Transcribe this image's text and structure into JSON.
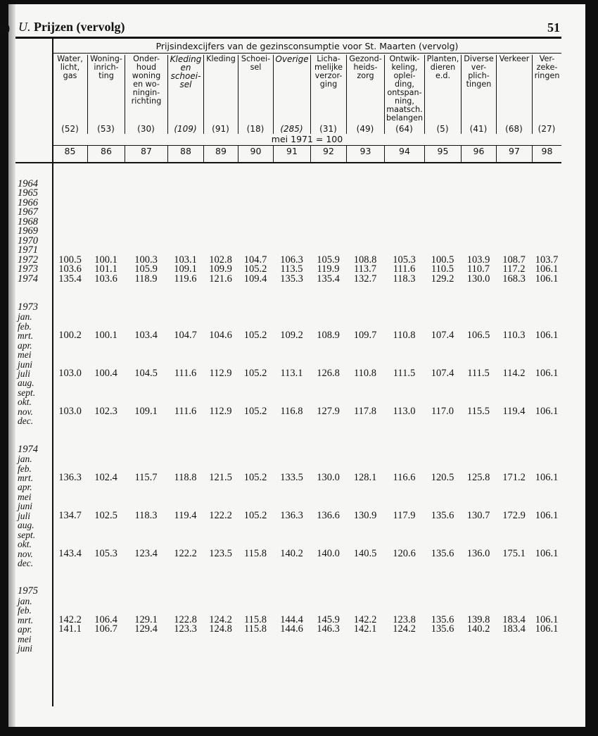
{
  "prev_page_fragment": "g)",
  "header": {
    "section": "U.",
    "title": "Prijzen (vervolg)",
    "page_number": "51"
  },
  "table": {
    "supertitle": "Prijsindexcijfers van de gezinsconsumptie voor St. Maarten (vervolg)",
    "base": "mei 1971 = 100",
    "columns": [
      {
        "label": "Water,\nlicht,\ngas",
        "weight": "(52)",
        "number": "85",
        "italic": false
      },
      {
        "label": "Woning-\ninrich-\nting",
        "weight": "(53)",
        "number": "86",
        "italic": false
      },
      {
        "label": "Onder-\nhoud\nwoning\nen wo-\nningin-\nrichting",
        "weight": "(30)",
        "number": "87",
        "italic": false
      },
      {
        "label": "Kleding\nen\nschoei-\nsel",
        "weight": "(109)",
        "number": "88",
        "italic": true
      },
      {
        "label": "Kleding",
        "weight": "(91)",
        "number": "89",
        "italic": false
      },
      {
        "label": "Schoei-\nsel",
        "weight": "(18)",
        "number": "90",
        "italic": false
      },
      {
        "label": "Overige",
        "weight": "(285)",
        "number": "91",
        "italic": true
      },
      {
        "label": "Licha-\nmelijke\nverzor-\nging",
        "weight": "(31)",
        "number": "92",
        "italic": false
      },
      {
        "label": "Gezond-\nheids-\nzorg",
        "weight": "(49)",
        "number": "93",
        "italic": false
      },
      {
        "label": "Ontwik-\nkeling,\noplei-\nding,\nontspan-\nning,\nmaatsch.\nbelangen",
        "weight": "(64)",
        "number": "94",
        "italic": false
      },
      {
        "label": "Planten,\ndieren\ne.d.",
        "weight": "(5)",
        "number": "95",
        "italic": false
      },
      {
        "label": "Diverse\nver-\nplich-\ntingen",
        "weight": "(41)",
        "number": "96",
        "italic": false
      },
      {
        "label": "Verkeer",
        "weight": "(68)",
        "number": "97",
        "italic": false
      },
      {
        "label": "Ver-\nzeke-\nringen",
        "weight": "(27)",
        "number": "98",
        "italic": false
      }
    ],
    "rows": [
      {
        "label": "1964",
        "values": []
      },
      {
        "label": "1965",
        "values": []
      },
      {
        "label": "1966",
        "values": []
      },
      {
        "label": "1967",
        "values": []
      },
      {
        "label": "1968",
        "values": []
      },
      {
        "label": "1969",
        "values": []
      },
      {
        "label": "1970",
        "values": []
      },
      {
        "label": "1971",
        "values": []
      },
      {
        "label": "1972",
        "values": [
          "100.5",
          "100.1",
          "100.3",
          "103.1",
          "102.8",
          "104.7",
          "106.3",
          "105.9",
          "108.8",
          "105.3",
          "100.5",
          "103.9",
          "108.7",
          "103.7"
        ]
      },
      {
        "label": "1973",
        "values": [
          "103.6",
          "101.1",
          "105.9",
          "109.1",
          "109.9",
          "105.2",
          "113.5",
          "119.9",
          "113.7",
          "111.6",
          "110.5",
          "110.7",
          "117.2",
          "106.1"
        ]
      },
      {
        "label": "1974",
        "values": [
          "135.4",
          "103.6",
          "118.9",
          "119.6",
          "121.6",
          "109.4",
          "135.3",
          "135.4",
          "132.7",
          "118.3",
          "129.2",
          "130.0",
          "168.3",
          "106.1"
        ]
      },
      {
        "label": "",
        "values": []
      },
      {
        "label": "",
        "values": []
      },
      {
        "label": "1973",
        "values": []
      },
      {
        "label": "jan.",
        "values": []
      },
      {
        "label": "feb.",
        "values": []
      },
      {
        "label": "mrt.",
        "values": [
          "100.2",
          "100.1",
          "103.4",
          "104.7",
          "104.6",
          "105.2",
          "109.2",
          "108.9",
          "109.7",
          "110.8",
          "107.4",
          "106.5",
          "110.3",
          "106.1"
        ]
      },
      {
        "label": "apr.",
        "values": []
      },
      {
        "label": "mei",
        "values": []
      },
      {
        "label": "juni",
        "values": []
      },
      {
        "label": "juli",
        "values": [
          "103.0",
          "100.4",
          "104.5",
          "111.6",
          "112.9",
          "105.2",
          "113.1",
          "126.8",
          "110.8",
          "111.5",
          "107.4",
          "111.5",
          "114.2",
          "106.1"
        ]
      },
      {
        "label": "aug.",
        "values": []
      },
      {
        "label": "sept.",
        "values": []
      },
      {
        "label": "okt.",
        "values": []
      },
      {
        "label": "nov.",
        "values": [
          "103.0",
          "102.3",
          "109.1",
          "111.6",
          "112.9",
          "105.2",
          "116.8",
          "127.9",
          "117.8",
          "113.0",
          "117.0",
          "115.5",
          "119.4",
          "106.1"
        ]
      },
      {
        "label": "dec.",
        "values": []
      },
      {
        "label": "",
        "values": []
      },
      {
        "label": "",
        "values": []
      },
      {
        "label": "1974",
        "values": []
      },
      {
        "label": "jan.",
        "values": []
      },
      {
        "label": "feb.",
        "values": []
      },
      {
        "label": "mrt.",
        "values": [
          "136.3",
          "102.4",
          "115.7",
          "118.8",
          "121.5",
          "105.2",
          "133.5",
          "130.0",
          "128.1",
          "116.6",
          "120.5",
          "125.8",
          "171.2",
          "106.1"
        ]
      },
      {
        "label": "apr.",
        "values": []
      },
      {
        "label": "mei",
        "values": []
      },
      {
        "label": "juni",
        "values": []
      },
      {
        "label": "juli",
        "values": [
          "134.7",
          "102.5",
          "118.3",
          "119.4",
          "122.2",
          "105.2",
          "136.3",
          "136.6",
          "130.9",
          "117.9",
          "135.6",
          "130.7",
          "172.9",
          "106.1"
        ]
      },
      {
        "label": "aug.",
        "values": []
      },
      {
        "label": "sept.",
        "values": []
      },
      {
        "label": "okt.",
        "values": []
      },
      {
        "label": "nov.",
        "values": [
          "143.4",
          "105.3",
          "123.4",
          "122.2",
          "123.5",
          "115.8",
          "140.2",
          "140.0",
          "140.5",
          "120.6",
          "135.6",
          "136.0",
          "175.1",
          "106.1"
        ]
      },
      {
        "label": "dec.",
        "values": []
      },
      {
        "label": "",
        "values": []
      },
      {
        "label": "",
        "values": []
      },
      {
        "label": "1975",
        "values": []
      },
      {
        "label": "jan.",
        "values": []
      },
      {
        "label": "feb.",
        "values": []
      },
      {
        "label": "mrt.",
        "values": [
          "142.2",
          "106.4",
          "129.1",
          "122.8",
          "124.2",
          "115.8",
          "144.4",
          "145.9",
          "142.2",
          "123.8",
          "135.6",
          "139.8",
          "183.4",
          "106.1"
        ]
      },
      {
        "label": "apr.",
        "values": [
          "141.1",
          "106.7",
          "129.4",
          "123.3",
          "124.8",
          "115.8",
          "144.6",
          "146.3",
          "142.1",
          "124.2",
          "135.6",
          "140.2",
          "183.4",
          "106.1"
        ]
      },
      {
        "label": "mei",
        "values": []
      },
      {
        "label": "juni",
        "values": []
      }
    ]
  }
}
